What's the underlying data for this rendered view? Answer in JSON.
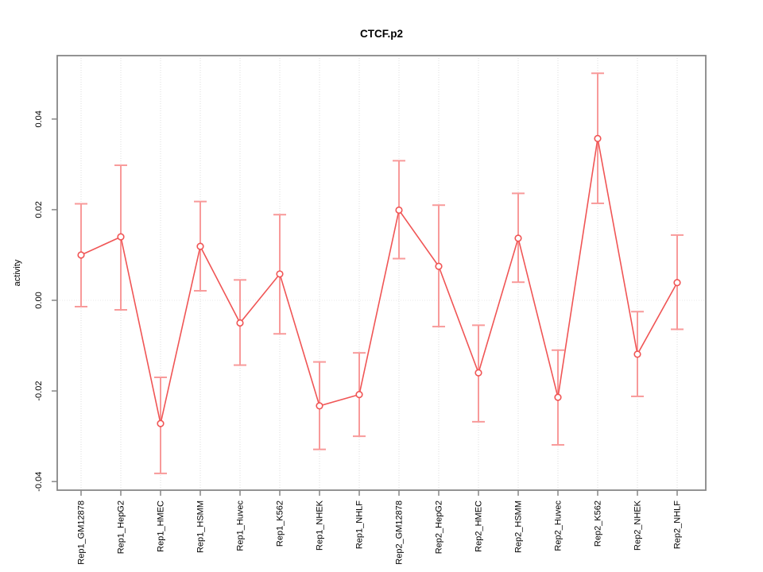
{
  "chart_data": {
    "type": "scatter-errorbar-line",
    "title": "CTCF.p2",
    "xlabel": "",
    "ylabel": "activity",
    "ylim": [
      -0.0419,
      0.054
    ],
    "yticks": {
      "values": [
        -0.04,
        -0.02,
        0.0,
        0.02,
        0.04
      ],
      "labels": [
        "-0.04",
        "-0.02",
        "0.00",
        "0.02",
        "0.04"
      ]
    },
    "grid": "vertical dotted gridline per category; dotted horizontal line at zero",
    "legend": "none",
    "categories": [
      "Rep1_GM12878",
      "Rep1_HepG2",
      "Rep1_HMEC",
      "Rep1_HSMM",
      "Rep1_Huvec",
      "Rep1_K562",
      "Rep1_NHEK",
      "Rep1_NHLF",
      "Rep2_GM12878",
      "Rep2_HepG2",
      "Rep2_HMEC",
      "Rep2_HSMM",
      "Rep2_Huvec",
      "Rep2_K562",
      "Rep2_NHEK",
      "Rep2_NHLF"
    ],
    "series": [
      {
        "name": "activity",
        "values": [
          0.01,
          0.014,
          -0.0272,
          0.0119,
          -0.005,
          0.0058,
          -0.0233,
          -0.0208,
          0.0199,
          0.0075,
          -0.016,
          0.0137,
          -0.0214,
          0.0357,
          -0.0119,
          0.0039
        ],
        "lower": [
          -0.0014,
          -0.0021,
          -0.0382,
          0.0021,
          -0.0143,
          -0.0074,
          -0.0329,
          -0.03,
          0.0092,
          -0.0058,
          -0.0268,
          0.004,
          -0.0319,
          0.0214,
          -0.0212,
          -0.0064
        ],
        "upper": [
          0.0213,
          0.0298,
          -0.017,
          0.0218,
          0.0045,
          0.0189,
          -0.0136,
          -0.0116,
          0.0308,
          0.021,
          -0.0055,
          0.0236,
          -0.011,
          0.0501,
          -0.0025,
          0.0144
        ]
      }
    ],
    "colors": {
      "line": "#f05555",
      "point": "#f05555",
      "errorbar": "#f89a9a",
      "grid": "#dcdcdc",
      "zero_line": "#e9e9e9",
      "box": "#878787",
      "tick": "#878787",
      "text": "#000000",
      "background": "#ffffff"
    }
  }
}
